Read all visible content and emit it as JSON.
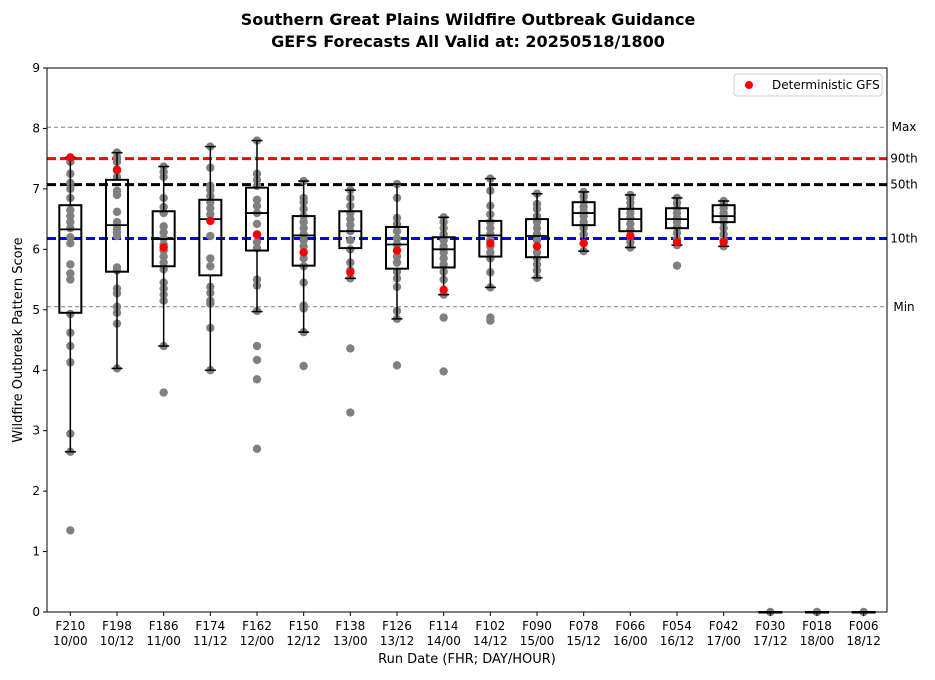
{
  "chart_data": {
    "type": "box",
    "title": "Southern Great Plains Wildfire Outbreak Guidance",
    "subtitle": "GEFS Forecasts All Valid at: 20250518/1800",
    "xlabel": "Run Date (FHR; DAY/HOUR)",
    "ylabel": "Wildfire Outbreak Pattern Score",
    "ylim": [
      0,
      9
    ],
    "yticks": [
      "0",
      "1",
      "2",
      "3",
      "4",
      "5",
      "6",
      "7",
      "8",
      "9"
    ],
    "grid": false,
    "legend": {
      "placement": "top-right",
      "entries": [
        {
          "name": "Deterministic GFS",
          "color": "#ff0000"
        }
      ]
    },
    "categories": [
      {
        "fhr": "F210",
        "day": "10/00"
      },
      {
        "fhr": "F198",
        "day": "10/12"
      },
      {
        "fhr": "F186",
        "day": "11/00"
      },
      {
        "fhr": "F174",
        "day": "11/12"
      },
      {
        "fhr": "F162",
        "day": "12/00"
      },
      {
        "fhr": "F150",
        "day": "12/12"
      },
      {
        "fhr": "F138",
        "day": "13/00"
      },
      {
        "fhr": "F126",
        "day": "13/12"
      },
      {
        "fhr": "F114",
        "day": "14/00"
      },
      {
        "fhr": "F102",
        "day": "14/12"
      },
      {
        "fhr": "F090",
        "day": "15/00"
      },
      {
        "fhr": "F078",
        "day": "15/12"
      },
      {
        "fhr": "F066",
        "day": "16/00"
      },
      {
        "fhr": "F054",
        "day": "16/12"
      },
      {
        "fhr": "F042",
        "day": "17/00"
      },
      {
        "fhr": "F030",
        "day": "17/12"
      },
      {
        "fhr": "F018",
        "day": "18/00"
      },
      {
        "fhr": "F006",
        "day": "18/12"
      }
    ],
    "reference_lines": [
      {
        "label": "Max",
        "value": 8.02,
        "style": "dashed-thin",
        "color": "#808080"
      },
      {
        "label": "90th",
        "value": 7.5,
        "style": "dashed-thick",
        "color": "#ff0000"
      },
      {
        "label": "50th",
        "value": 7.07,
        "style": "dashed-thick",
        "color": "#000000"
      },
      {
        "label": "10th",
        "value": 6.18,
        "style": "dashed-thick",
        "color": "#0000ff"
      },
      {
        "label": "Min",
        "value": 5.05,
        "style": "dashed-thin",
        "color": "#808080"
      }
    ],
    "boxes": [
      {
        "whisker_low": 2.65,
        "q1": 4.95,
        "median": 6.33,
        "q3": 6.73,
        "whisker_high": 7.52
      },
      {
        "whisker_low": 4.03,
        "q1": 5.63,
        "median": 6.4,
        "q3": 7.15,
        "whisker_high": 7.6
      },
      {
        "whisker_low": 4.4,
        "q1": 5.72,
        "median": 6.17,
        "q3": 6.63,
        "whisker_high": 7.37
      },
      {
        "whisker_low": 4.0,
        "q1": 5.57,
        "median": 6.5,
        "q3": 6.82,
        "whisker_high": 7.7
      },
      {
        "whisker_low": 4.97,
        "q1": 5.98,
        "median": 6.6,
        "q3": 7.02,
        "whisker_high": 7.8
      },
      {
        "whisker_low": 4.63,
        "q1": 5.73,
        "median": 6.23,
        "q3": 6.55,
        "whisker_high": 7.13
      },
      {
        "whisker_low": 5.52,
        "q1": 6.02,
        "median": 6.3,
        "q3": 6.63,
        "whisker_high": 6.98
      },
      {
        "whisker_low": 4.85,
        "q1": 5.68,
        "median": 6.08,
        "q3": 6.37,
        "whisker_high": 7.08
      },
      {
        "whisker_low": 5.25,
        "q1": 5.7,
        "median": 6.0,
        "q3": 6.2,
        "whisker_high": 6.53
      },
      {
        "whisker_low": 5.37,
        "q1": 5.88,
        "median": 6.23,
        "q3": 6.47,
        "whisker_high": 7.17
      },
      {
        "whisker_low": 5.53,
        "q1": 5.87,
        "median": 6.22,
        "q3": 6.5,
        "whisker_high": 6.92
      },
      {
        "whisker_low": 5.97,
        "q1": 6.4,
        "median": 6.6,
        "q3": 6.78,
        "whisker_high": 6.95
      },
      {
        "whisker_low": 6.03,
        "q1": 6.3,
        "median": 6.5,
        "q3": 6.67,
        "whisker_high": 6.9
      },
      {
        "whisker_low": 6.07,
        "q1": 6.35,
        "median": 6.5,
        "q3": 6.68,
        "whisker_high": 6.85
      },
      {
        "whisker_low": 6.05,
        "q1": 6.45,
        "median": 6.55,
        "q3": 6.73,
        "whisker_high": 6.8
      },
      {
        "whisker_low": 0.0,
        "q1": 0.0,
        "median": 0.0,
        "q3": 0.0,
        "whisker_high": 0.0
      },
      {
        "whisker_low": 0.0,
        "q1": 0.0,
        "median": 0.0,
        "q3": 0.0,
        "whisker_high": 0.0
      },
      {
        "whisker_low": 0.0,
        "q1": 0.0,
        "median": 0.0,
        "q3": 0.0,
        "whisker_high": 0.0
      }
    ],
    "members": [
      [
        1.35,
        2.95,
        2.65,
        4.13,
        4.4,
        4.62,
        4.93,
        5.5,
        5.6,
        5.75,
        6.1,
        6.2,
        6.35,
        6.45,
        6.55,
        6.65,
        6.85,
        7.0,
        7.1,
        7.25,
        7.45,
        7.52
      ],
      [
        4.03,
        4.77,
        4.95,
        5.05,
        5.27,
        5.35,
        5.65,
        5.7,
        6.22,
        6.28,
        6.35,
        6.45,
        6.62,
        6.9,
        6.97,
        7.2,
        7.3,
        7.45,
        7.52,
        7.6
      ],
      [
        3.63,
        4.4,
        5.15,
        5.25,
        5.35,
        5.45,
        5.67,
        5.78,
        5.88,
        5.98,
        6.08,
        6.18,
        6.28,
        6.38,
        6.6,
        6.7,
        6.85,
        7.2,
        7.28,
        7.37
      ],
      [
        4.0,
        4.7,
        5.1,
        5.15,
        5.28,
        5.38,
        5.72,
        5.85,
        6.22,
        6.48,
        6.58,
        6.68,
        6.78,
        6.88,
        6.98,
        7.05,
        7.35,
        7.7
      ],
      [
        2.7,
        3.85,
        4.17,
        4.4,
        4.98,
        5.4,
        5.5,
        6.02,
        6.12,
        6.25,
        6.42,
        6.6,
        6.72,
        6.82,
        7.05,
        7.15,
        7.25,
        7.8
      ],
      [
        4.07,
        4.63,
        5.02,
        5.07,
        5.45,
        5.72,
        5.85,
        5.95,
        6.05,
        6.15,
        6.25,
        6.35,
        6.45,
        6.55,
        6.67,
        6.78,
        6.85,
        7.13
      ],
      [
        3.3,
        4.36,
        5.52,
        5.65,
        5.78,
        6.0,
        6.15,
        6.3,
        6.4,
        6.5,
        6.6,
        6.72,
        6.85,
        6.98
      ],
      [
        4.08,
        4.85,
        4.98,
        5.38,
        5.52,
        5.63,
        5.78,
        5.88,
        5.98,
        6.08,
        6.18,
        6.3,
        6.42,
        6.52,
        6.85,
        7.08
      ],
      [
        3.98,
        4.87,
        5.25,
        5.5,
        5.63,
        5.75,
        5.85,
        5.95,
        6.05,
        6.15,
        6.25,
        6.35,
        6.45,
        6.53
      ],
      [
        4.82,
        4.87,
        5.37,
        5.62,
        5.85,
        5.95,
        6.05,
        6.15,
        6.25,
        6.35,
        6.45,
        6.58,
        6.72,
        6.97,
        7.17
      ],
      [
        5.53,
        5.65,
        5.75,
        5.85,
        5.95,
        6.05,
        6.15,
        6.25,
        6.35,
        6.45,
        6.55,
        6.67,
        6.75,
        6.92
      ],
      [
        5.97,
        6.1,
        6.25,
        6.35,
        6.45,
        6.55,
        6.62,
        6.7,
        6.78,
        6.87,
        6.95
      ],
      [
        6.03,
        6.12,
        6.22,
        6.32,
        6.42,
        6.52,
        6.6,
        6.68,
        6.77,
        6.85,
        6.9
      ],
      [
        5.73,
        6.07,
        6.17,
        6.27,
        6.37,
        6.45,
        6.52,
        6.6,
        6.68,
        6.77,
        6.85
      ],
      [
        6.05,
        6.15,
        6.25,
        6.35,
        6.45,
        6.52,
        6.6,
        6.68,
        6.75,
        6.8
      ],
      [
        0.0
      ],
      [
        0.0
      ],
      [
        0.0
      ]
    ],
    "deterministic_gfs": [
      7.52,
      7.32,
      6.03,
      6.47,
      6.24,
      5.95,
      5.62,
      5.98,
      5.33,
      6.1,
      6.05,
      6.1,
      6.22,
      6.12,
      6.12,
      null,
      null,
      null
    ],
    "colors": {
      "members": "#808080",
      "deterministic": "#ff0000",
      "box": "#000000"
    }
  }
}
